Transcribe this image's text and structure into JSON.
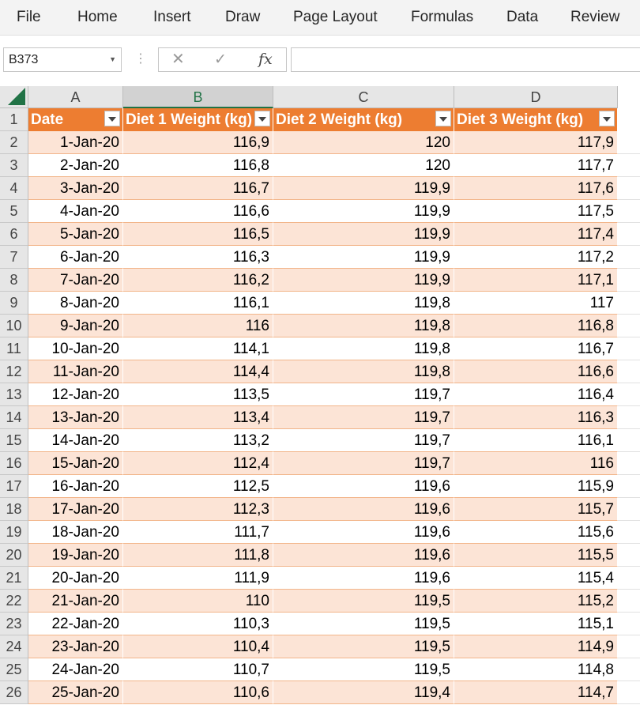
{
  "ribbon": {
    "menus": [
      "File",
      "Home",
      "Insert",
      "Draw",
      "Page Layout",
      "Formulas",
      "Data",
      "Review"
    ]
  },
  "formula_bar": {
    "name_box": "B373",
    "name_box_icon": "chevron-down-icon",
    "fx_label": "fx",
    "formula": ""
  },
  "sheet": {
    "columns": [
      "A",
      "B",
      "C",
      "D"
    ],
    "selected_column": "B",
    "headers": [
      "Date",
      "Diet 1 Weight (kg)",
      "Diet 2 Weight (kg)",
      "Diet 3 Weight (kg)"
    ],
    "header_color": "#ed7d31",
    "band_color": "#fce4d6",
    "rows": [
      {
        "n": "2",
        "date": "1-Jan-20",
        "d1": "116,9",
        "d2": "120",
        "d3": "117,9"
      },
      {
        "n": "3",
        "date": "2-Jan-20",
        "d1": "116,8",
        "d2": "120",
        "d3": "117,7"
      },
      {
        "n": "4",
        "date": "3-Jan-20",
        "d1": "116,7",
        "d2": "119,9",
        "d3": "117,6"
      },
      {
        "n": "5",
        "date": "4-Jan-20",
        "d1": "116,6",
        "d2": "119,9",
        "d3": "117,5"
      },
      {
        "n": "6",
        "date": "5-Jan-20",
        "d1": "116,5",
        "d2": "119,9",
        "d3": "117,4"
      },
      {
        "n": "7",
        "date": "6-Jan-20",
        "d1": "116,3",
        "d2": "119,9",
        "d3": "117,2"
      },
      {
        "n": "8",
        "date": "7-Jan-20",
        "d1": "116,2",
        "d2": "119,9",
        "d3": "117,1"
      },
      {
        "n": "9",
        "date": "8-Jan-20",
        "d1": "116,1",
        "d2": "119,8",
        "d3": "117"
      },
      {
        "n": "10",
        "date": "9-Jan-20",
        "d1": "116",
        "d2": "119,8",
        "d3": "116,8"
      },
      {
        "n": "11",
        "date": "10-Jan-20",
        "d1": "114,1",
        "d2": "119,8",
        "d3": "116,7"
      },
      {
        "n": "12",
        "date": "11-Jan-20",
        "d1": "114,4",
        "d2": "119,8",
        "d3": "116,6"
      },
      {
        "n": "13",
        "date": "12-Jan-20",
        "d1": "113,5",
        "d2": "119,7",
        "d3": "116,4"
      },
      {
        "n": "14",
        "date": "13-Jan-20",
        "d1": "113,4",
        "d2": "119,7",
        "d3": "116,3"
      },
      {
        "n": "15",
        "date": "14-Jan-20",
        "d1": "113,2",
        "d2": "119,7",
        "d3": "116,1"
      },
      {
        "n": "16",
        "date": "15-Jan-20",
        "d1": "112,4",
        "d2": "119,7",
        "d3": "116"
      },
      {
        "n": "17",
        "date": "16-Jan-20",
        "d1": "112,5",
        "d2": "119,6",
        "d3": "115,9"
      },
      {
        "n": "18",
        "date": "17-Jan-20",
        "d1": "112,3",
        "d2": "119,6",
        "d3": "115,7"
      },
      {
        "n": "19",
        "date": "18-Jan-20",
        "d1": "111,7",
        "d2": "119,6",
        "d3": "115,6"
      },
      {
        "n": "20",
        "date": "19-Jan-20",
        "d1": "111,8",
        "d2": "119,6",
        "d3": "115,5"
      },
      {
        "n": "21",
        "date": "20-Jan-20",
        "d1": "111,9",
        "d2": "119,6",
        "d3": "115,4"
      },
      {
        "n": "22",
        "date": "21-Jan-20",
        "d1": "110",
        "d2": "119,5",
        "d3": "115,2"
      },
      {
        "n": "23",
        "date": "22-Jan-20",
        "d1": "110,3",
        "d2": "119,5",
        "d3": "115,1"
      },
      {
        "n": "24",
        "date": "23-Jan-20",
        "d1": "110,4",
        "d2": "119,5",
        "d3": "114,9"
      },
      {
        "n": "25",
        "date": "24-Jan-20",
        "d1": "110,7",
        "d2": "119,5",
        "d3": "114,8"
      },
      {
        "n": "26",
        "date": "25-Jan-20",
        "d1": "110,6",
        "d2": "119,4",
        "d3": "114,7"
      }
    ]
  }
}
